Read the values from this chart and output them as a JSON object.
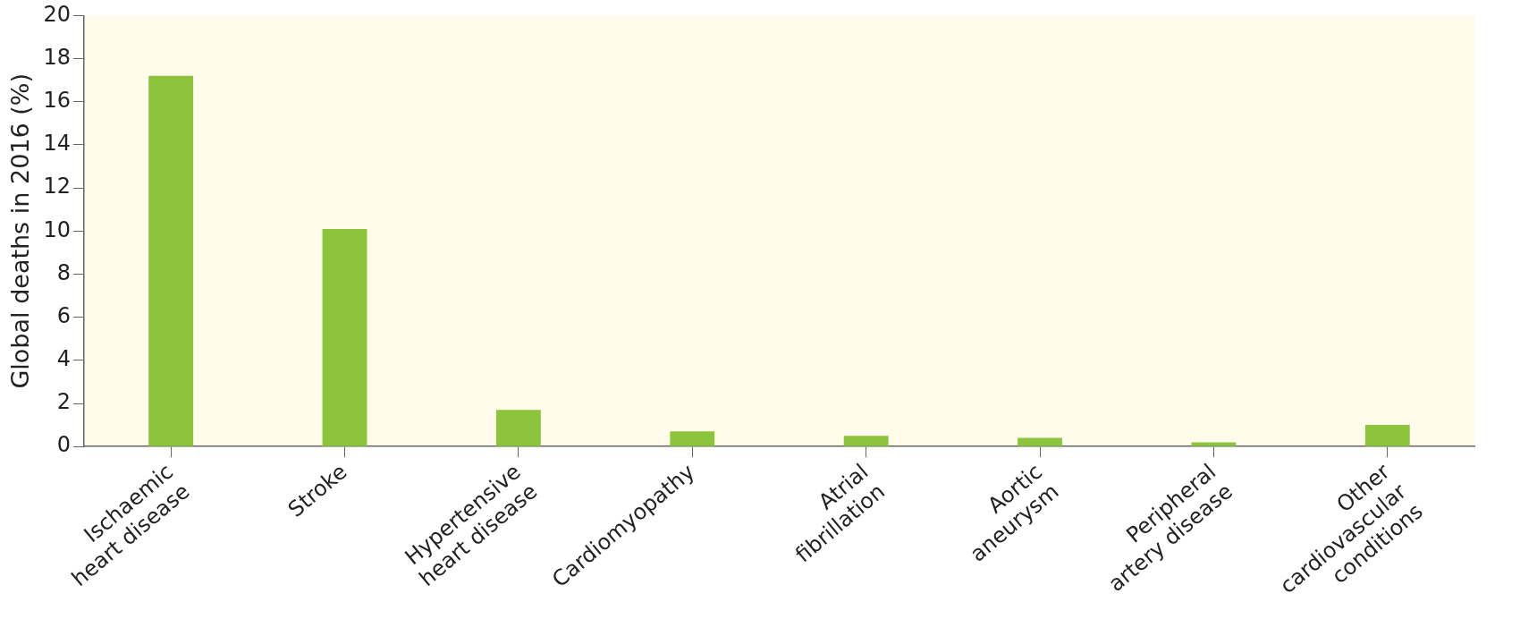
{
  "chart_data": {
    "type": "bar",
    "ylabel": "Global deaths in 2016 (%)",
    "categories": [
      "Ischaemic heart disease",
      "Stroke",
      "Hypertensive heart disease",
      "Cardiomyopathy",
      "Atrial fibrillation",
      "Aortic aneurysm",
      "Peripheral artery disease",
      "Other cardiovascular conditions"
    ],
    "values": [
      17.2,
      10.1,
      1.7,
      0.7,
      0.5,
      0.4,
      0.2,
      1.0
    ],
    "color": "#8cc43c",
    "ylim": [
      0,
      20
    ],
    "yticks": [
      0,
      2,
      4,
      6,
      8,
      10,
      12,
      14,
      16,
      18,
      20
    ],
    "grid": false,
    "legend": false
  }
}
